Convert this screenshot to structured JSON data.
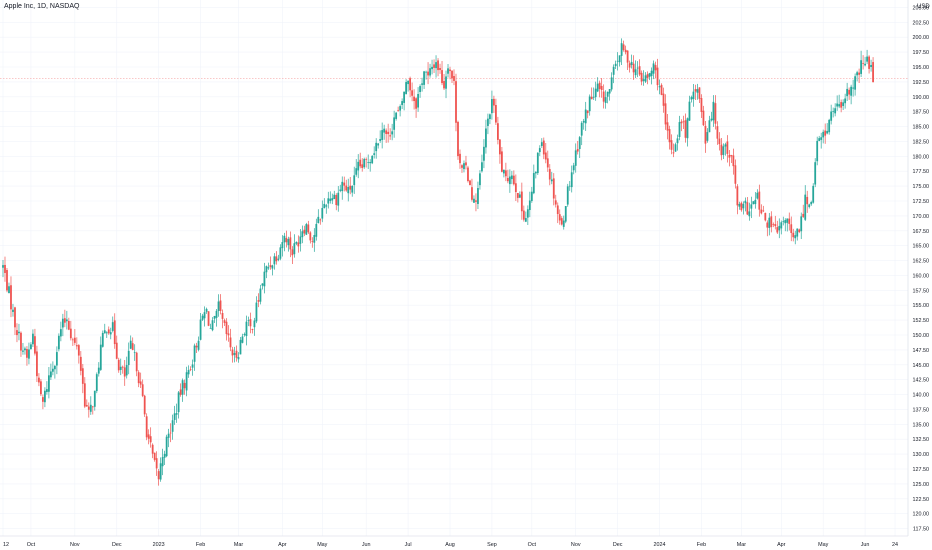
{
  "header": {
    "title": "Apple Inc, 1D, NASDAQ",
    "currency": "USD"
  },
  "colors": {
    "up": "#26a69a",
    "down": "#ef5350",
    "grid": "#f0f3fa",
    "axis_text": "#131722",
    "price_line": "#f7a8a8"
  },
  "chart_data": {
    "type": "candlestick",
    "title": "Apple Inc, 1D, NASDAQ",
    "ylabel": "USD",
    "y_range": [
      116.25,
      206.25
    ],
    "y_ticks": [
      "205.00",
      "202.50",
      "200.00",
      "197.50",
      "195.00",
      "192.50",
      "190.00",
      "187.50",
      "185.00",
      "182.50",
      "180.00",
      "177.50",
      "175.00",
      "172.50",
      "170.00",
      "167.50",
      "165.00",
      "162.50",
      "160.00",
      "157.50",
      "155.00",
      "152.50",
      "150.00",
      "147.50",
      "145.00",
      "142.50",
      "140.00",
      "137.50",
      "135.00",
      "132.50",
      "130.00",
      "127.50",
      "125.00",
      "122.50",
      "120.00",
      "117.50"
    ],
    "x_labels": [
      {
        "label": "12",
        "x": 0
      },
      {
        "label": "Oct",
        "x": 14
      },
      {
        "label": "Nov",
        "x": 36
      },
      {
        "label": "Dec",
        "x": 57
      },
      {
        "label": "2023",
        "x": 78
      },
      {
        "label": "Feb",
        "x": 99
      },
      {
        "label": "Mar",
        "x": 118
      },
      {
        "label": "Apr",
        "x": 140
      },
      {
        "label": "May",
        "x": 160
      },
      {
        "label": "Jun",
        "x": 182
      },
      {
        "label": "Jul",
        "x": 203
      },
      {
        "label": "Aug",
        "x": 224
      },
      {
        "label": "Sep",
        "x": 245
      },
      {
        "label": "Oct",
        "x": 265
      },
      {
        "label": "Nov",
        "x": 287
      },
      {
        "label": "Dec",
        "x": 308
      },
      {
        "label": "2024",
        "x": 329
      },
      {
        "label": "Feb",
        "x": 350
      },
      {
        "label": "Mar",
        "x": 370
      },
      {
        "label": "Apr",
        "x": 390
      },
      {
        "label": "May",
        "x": 411
      },
      {
        "label": "Jun",
        "x": 432
      },
      {
        "label": "24",
        "x": 447
      }
    ],
    "x_max": 452,
    "current_price": 193.1,
    "closes": [
      [
        0,
        161.5
      ],
      [
        3,
        157
      ],
      [
        6,
        152
      ],
      [
        9,
        148.5
      ],
      [
        12,
        146
      ],
      [
        15,
        150
      ],
      [
        18,
        141
      ],
      [
        20,
        138.5
      ],
      [
        23,
        143
      ],
      [
        26,
        146
      ],
      [
        29,
        151
      ],
      [
        32,
        153
      ],
      [
        35,
        149
      ],
      [
        38,
        147
      ],
      [
        41,
        139
      ],
      [
        43,
        136.5
      ],
      [
        46,
        140
      ],
      [
        49,
        148
      ],
      [
        52,
        151.5
      ],
      [
        55,
        151
      ],
      [
        58,
        145
      ],
      [
        61,
        143
      ],
      [
        64,
        148
      ],
      [
        67,
        145
      ],
      [
        70,
        139
      ],
      [
        72,
        134
      ],
      [
        74,
        131
      ],
      [
        76,
        128
      ],
      [
        78,
        126
      ],
      [
        80,
        130
      ],
      [
        83,
        133
      ],
      [
        86,
        136.5
      ],
      [
        89,
        140.5
      ],
      [
        92,
        143
      ],
      [
        95,
        146
      ],
      [
        98,
        150
      ],
      [
        100,
        153
      ],
      [
        102,
        154
      ],
      [
        104,
        151
      ],
      [
        106,
        152
      ],
      [
        108,
        154.5
      ],
      [
        110,
        152
      ],
      [
        112,
        150
      ],
      [
        114,
        148
      ],
      [
        116,
        146
      ],
      [
        118,
        147.5
      ],
      [
        120,
        150
      ],
      [
        122,
        152
      ],
      [
        124,
        151
      ],
      [
        126,
        153
      ],
      [
        128,
        156
      ],
      [
        130,
        159
      ],
      [
        132,
        161
      ],
      [
        135,
        162.5
      ],
      [
        138,
        164
      ],
      [
        140,
        166
      ],
      [
        142,
        166.5
      ],
      [
        145,
        164
      ],
      [
        148,
        166
      ],
      [
        150,
        168
      ],
      [
        152,
        168.5
      ],
      [
        155,
        166
      ],
      [
        158,
        169
      ],
      [
        161,
        172
      ],
      [
        164,
        173.5
      ],
      [
        167,
        173
      ],
      [
        170,
        175.5
      ],
      [
        173,
        174
      ],
      [
        176,
        176
      ],
      [
        178,
        178
      ],
      [
        181,
        178.5
      ],
      [
        184,
        180
      ],
      [
        187,
        182
      ],
      [
        190,
        185
      ],
      [
        193,
        183
      ],
      [
        196,
        186.5
      ],
      [
        199,
        187.5
      ],
      [
        201,
        191
      ],
      [
        203,
        193
      ],
      [
        205,
        190.5
      ],
      [
        207,
        189
      ],
      [
        209,
        191.5
      ],
      [
        211,
        194.5
      ],
      [
        213,
        193
      ],
      [
        215,
        195
      ],
      [
        217,
        196
      ],
      [
        219,
        194
      ],
      [
        221,
        192
      ],
      [
        223,
        195.8
      ],
      [
        226,
        192
      ],
      [
        228,
        181
      ],
      [
        230,
        177.5
      ],
      [
        232,
        178
      ],
      [
        234,
        175.5
      ],
      [
        236,
        172
      ],
      [
        238,
        174.5
      ],
      [
        240,
        178.5
      ],
      [
        242,
        184
      ],
      [
        244,
        188
      ],
      [
        246,
        189
      ],
      [
        248,
        182
      ],
      [
        250,
        178
      ],
      [
        252,
        175.5
      ],
      [
        254,
        177.5
      ],
      [
        256,
        176
      ],
      [
        258,
        174
      ],
      [
        260,
        171
      ],
      [
        262,
        170
      ],
      [
        264,
        172
      ],
      [
        266,
        176
      ],
      [
        268,
        180
      ],
      [
        270,
        183
      ],
      [
        272,
        180
      ],
      [
        274,
        177
      ],
      [
        276,
        174
      ],
      [
        278,
        170.5
      ],
      [
        280,
        168
      ],
      [
        282,
        172.5
      ],
      [
        284,
        176
      ],
      [
        286,
        179
      ],
      [
        288,
        182
      ],
      [
        290,
        185
      ],
      [
        292,
        187
      ],
      [
        294,
        189.5
      ],
      [
        296,
        190
      ],
      [
        298,
        191.5
      ],
      [
        300,
        190
      ],
      [
        302,
        190
      ],
      [
        304,
        191
      ],
      [
        306,
        194
      ],
      [
        308,
        196.5
      ],
      [
        310,
        198
      ],
      [
        312,
        197
      ],
      [
        314,
        196
      ],
      [
        316,
        195
      ],
      [
        318,
        194
      ],
      [
        320,
        193
      ],
      [
        323,
        193
      ],
      [
        326,
        195
      ],
      [
        329,
        192
      ],
      [
        332,
        185
      ],
      [
        334,
        182
      ],
      [
        336,
        181
      ],
      [
        338,
        184
      ],
      [
        340,
        186
      ],
      [
        342,
        184
      ],
      [
        344,
        188
      ],
      [
        346,
        192
      ],
      [
        348,
        191
      ],
      [
        350,
        188
      ],
      [
        352,
        183
      ],
      [
        354,
        186.5
      ],
      [
        356,
        188
      ],
      [
        358,
        184
      ],
      [
        360,
        181
      ],
      [
        362,
        182
      ],
      [
        364,
        180.5
      ],
      [
        366,
        178
      ],
      [
        368,
        172
      ],
      [
        370,
        170.5
      ],
      [
        372,
        171.5
      ],
      [
        374,
        171
      ],
      [
        376,
        172
      ],
      [
        378,
        173
      ],
      [
        380,
        170
      ],
      [
        382,
        169.5
      ],
      [
        384,
        168.5
      ],
      [
        386,
        168
      ],
      [
        388,
        167
      ],
      [
        390,
        168
      ],
      [
        392,
        170
      ],
      [
        394,
        168
      ],
      [
        396,
        165.5
      ],
      [
        398,
        167
      ],
      [
        400,
        169
      ],
      [
        402,
        173
      ],
      [
        404,
        172
      ],
      [
        405,
        173
      ],
      [
        408,
        182
      ],
      [
        410,
        183
      ],
      [
        412,
        184
      ],
      [
        414,
        186
      ],
      [
        416,
        187.5
      ],
      [
        418,
        189
      ],
      [
        420,
        187
      ],
      [
        422,
        189.5
      ],
      [
        424,
        191
      ],
      [
        426,
        191.5
      ],
      [
        428,
        193.5
      ],
      [
        430,
        195
      ],
      [
        432,
        196
      ],
      [
        434,
        195.8
      ],
      [
        436,
        193.1
      ]
    ]
  }
}
